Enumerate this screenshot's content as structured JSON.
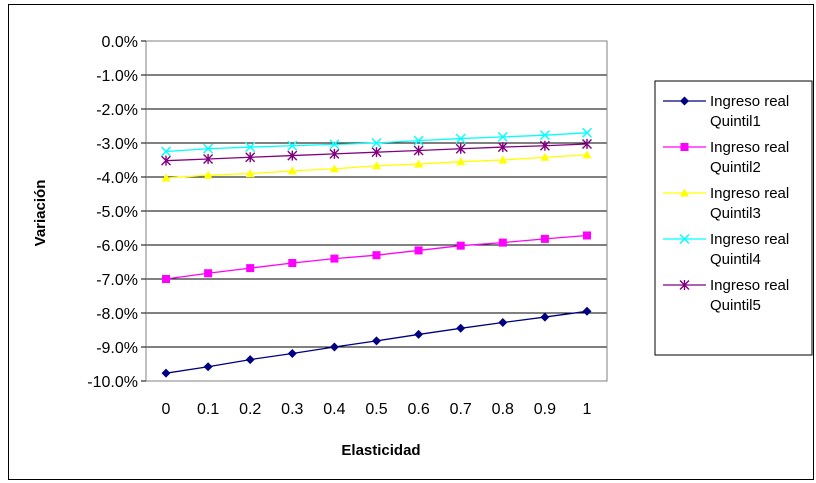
{
  "chart_data": {
    "type": "line",
    "title": "",
    "xlabel": "Elasticidad",
    "ylabel": "Variación",
    "x": [
      0,
      0.1,
      0.2,
      0.3,
      0.4,
      0.5,
      0.6,
      0.7,
      0.8,
      0.9,
      1
    ],
    "x_tick_labels": [
      "0",
      "0.1",
      "0.2",
      "0.3",
      "0.4",
      "0.5",
      "0.6",
      "0.7",
      "0.8",
      "0.9",
      "1"
    ],
    "ylim": [
      -10.0,
      0.0
    ],
    "y_ticks": [
      0,
      -1,
      -2,
      -3,
      -4,
      -5,
      -6,
      -7,
      -8,
      -9,
      -10
    ],
    "y_tick_labels": [
      "0.0%",
      "-1.0%",
      "-2.0%",
      "-3.0%",
      "-4.0%",
      "-5.0%",
      "-6.0%",
      "-7.0%",
      "-8.0%",
      "-9.0%",
      "-10.0%"
    ],
    "grid": "horizontal",
    "legend_position": "right",
    "series": [
      {
        "name_line1": "Ingreso real",
        "name_line2": "Quintil1",
        "color": "#000080",
        "marker": "diamond",
        "values": [
          -9.77,
          -9.58,
          -9.37,
          -9.19,
          -9.0,
          -8.82,
          -8.63,
          -8.45,
          -8.28,
          -8.12,
          -7.95
        ]
      },
      {
        "name_line1": "Ingreso real",
        "name_line2": "Quintil2",
        "color": "#FF00FF",
        "marker": "square",
        "values": [
          -7.0,
          -6.83,
          -6.68,
          -6.53,
          -6.4,
          -6.3,
          -6.16,
          -6.02,
          -5.93,
          -5.82,
          -5.72
        ]
      },
      {
        "name_line1": "Ingreso real",
        "name_line2": "Quintil3",
        "color": "#FFFF00",
        "marker": "triangle",
        "values": [
          -4.03,
          -3.95,
          -3.9,
          -3.82,
          -3.76,
          -3.67,
          -3.62,
          -3.55,
          -3.5,
          -3.42,
          -3.35
        ]
      },
      {
        "name_line1": "Ingreso real",
        "name_line2": "Quintil4",
        "color": "#00FFFF",
        "marker": "x",
        "values": [
          -3.25,
          -3.17,
          -3.12,
          -3.08,
          -3.04,
          -3.0,
          -2.93,
          -2.87,
          -2.82,
          -2.77,
          -2.7
        ]
      },
      {
        "name_line1": "Ingreso real",
        "name_line2": "Quintil5",
        "color": "#800080",
        "marker": "asterisk",
        "values": [
          -3.52,
          -3.47,
          -3.42,
          -3.37,
          -3.32,
          -3.27,
          -3.22,
          -3.17,
          -3.12,
          -3.08,
          -3.03
        ]
      }
    ]
  }
}
